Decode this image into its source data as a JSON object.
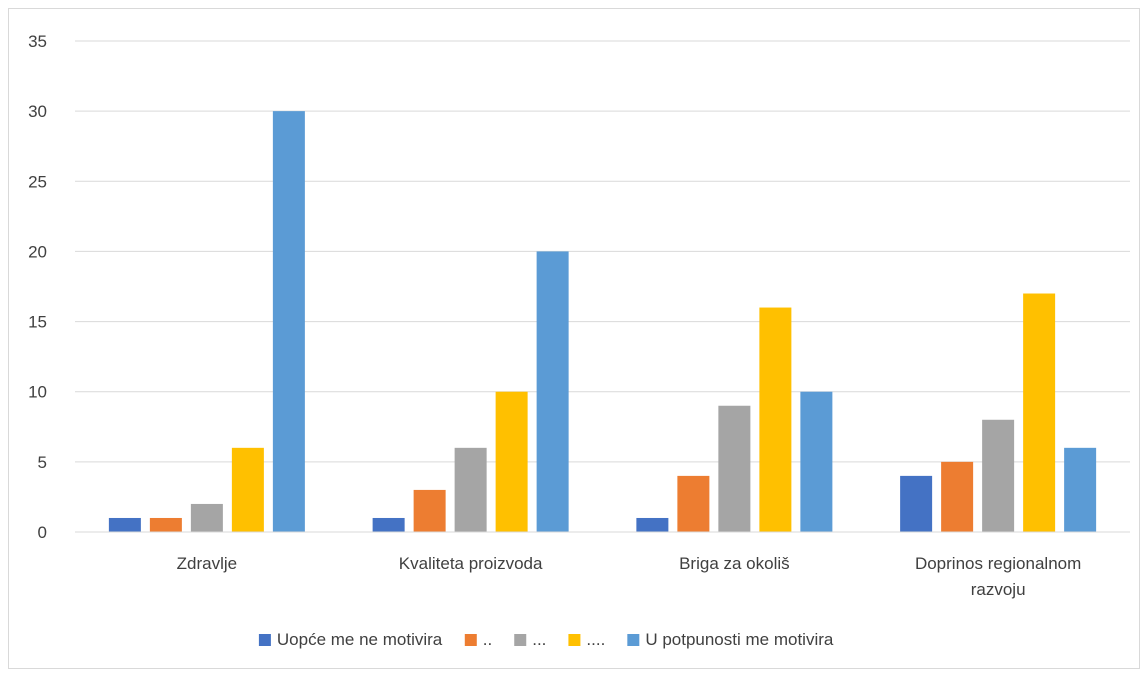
{
  "chart_data": {
    "type": "bar",
    "title": "",
    "xlabel": "",
    "ylabel": "",
    "ylim": [
      0,
      35
    ],
    "yticks": [
      0,
      5,
      10,
      15,
      20,
      25,
      30,
      35
    ],
    "grid": true,
    "legend_position": "bottom",
    "categories": [
      [
        "Zdravlje"
      ],
      [
        "Kvaliteta proizvoda"
      ],
      [
        "Briga za okoliš"
      ],
      [
        "Doprinos regionalnom",
        "razvoju"
      ]
    ],
    "series": [
      {
        "name": "Uopće me ne motivira",
        "color": "#4472C4",
        "values": [
          1,
          1,
          1,
          4
        ]
      },
      {
        "name": "..",
        "color": "#ED7D31",
        "values": [
          1,
          3,
          4,
          5
        ]
      },
      {
        "name": "...",
        "color": "#A5A5A5",
        "values": [
          2,
          6,
          9,
          8
        ]
      },
      {
        "name": "....",
        "color": "#FFC000",
        "values": [
          6,
          10,
          16,
          17
        ]
      },
      {
        "name": "U potpunosti me motivira",
        "color": "#5B9BD5",
        "values": [
          30,
          20,
          10,
          6
        ]
      }
    ]
  }
}
